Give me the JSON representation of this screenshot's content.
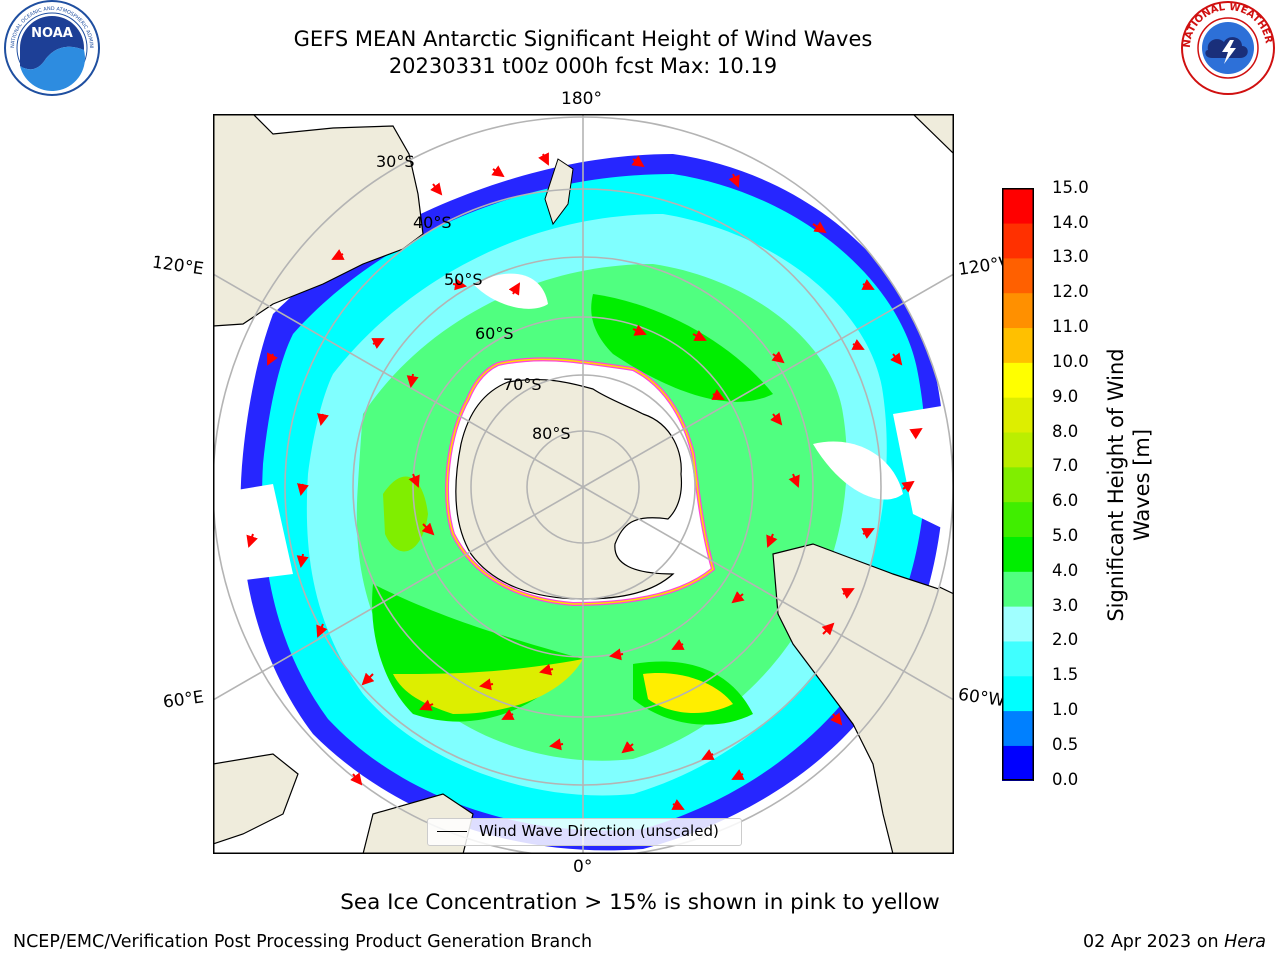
{
  "title": {
    "line1": "GEFS MEAN Antarctic Significant Height of Wind Waves",
    "line2": "20230331 t00z 000h fcst   Max: 10.19"
  },
  "logos": {
    "left": {
      "name": "NOAA",
      "ring_text": "NATIONAL OCEANIC AND ATMOSPHERIC ADMINISTRATION • U.S. DEPARTMENT OF COMMERCE"
    },
    "right": {
      "name": "National Weather Service",
      "ring_text": "NATIONAL WEATHER SERVICE"
    }
  },
  "map": {
    "projection": "south-polar stereographic",
    "longitude_labels": {
      "top": "180°",
      "bottom": "0°",
      "upper_left": "120°E",
      "upper_right": "120°W",
      "lower_left": "60°E",
      "lower_right": "60°W"
    },
    "latitude_labels": [
      "30°S",
      "40°S",
      "50°S",
      "60°S",
      "70°S",
      "80°S"
    ],
    "land_color": "#efecdc",
    "grid_color": "#b4b4b4",
    "arrow_color": "#ff0000",
    "sea_ice_colors": [
      "#ff44dd",
      "#ffdd00"
    ]
  },
  "colorbar": {
    "label_line1": "Significant Height of Wind",
    "label_line2": "Waves [m]",
    "ticks": [
      "15.0",
      "14.0",
      "13.0",
      "12.0",
      "11.0",
      "10.0",
      "9.0",
      "8.0",
      "7.0",
      "6.0",
      "5.0",
      "4.0",
      "3.0",
      "2.0",
      "1.5",
      "1.0",
      "0.5",
      "0.0"
    ],
    "colors": [
      "#0000ff",
      "#0080ff",
      "#00ffff",
      "#40ffff",
      "#80ffff",
      "#a0ffff",
      "#50ff80",
      "#00ee00",
      "#40ee00",
      "#80ee00",
      "#bbee00",
      "#ddee00",
      "#ffff00",
      "#ffee00",
      "#ffc000",
      "#ff9000",
      "#ff6000",
      "#ff3000",
      "#ff0000"
    ]
  },
  "legend": {
    "label": "Wind Wave Direction (unscaled)"
  },
  "footer": {
    "note": "Sea Ice Concentration > 15% is shown in pink to yellow",
    "credit_left": "NCEP/EMC/Verification Post Processing Product Generation Branch",
    "date": "02 Apr 2023 on",
    "system": "Hera"
  }
}
